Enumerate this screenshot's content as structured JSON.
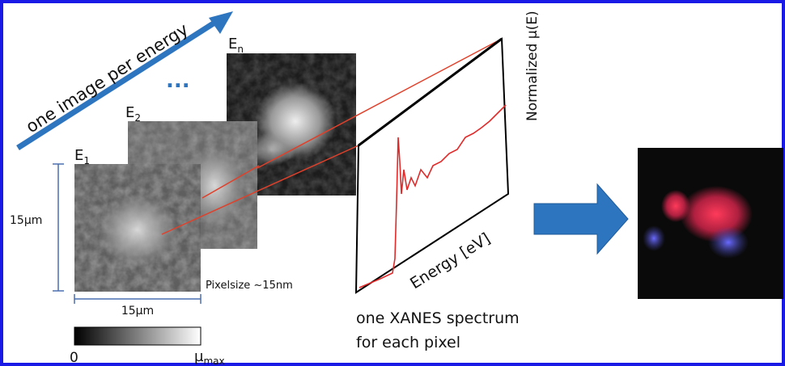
{
  "labels": {
    "arrow_text": "one image per energy",
    "ellipsis": "...",
    "e_n": {
      "base": "E",
      "sub": "n"
    },
    "e_2": {
      "base": "E",
      "sub": "2"
    },
    "e_1": {
      "base": "E",
      "sub": "1"
    },
    "scale_vertical": "15µm",
    "scale_horizontal": "15µm",
    "pixelsize": "Pixelsize ~15nm",
    "y_axis": "Normalized µ(E)",
    "x_axis": "Energy [eV]",
    "caption_line1": "one XANES spectrum",
    "caption_line2": "for each pixel",
    "colorbar_min": "0",
    "colorbar_max": {
      "base": "µ",
      "sub": "max"
    }
  }
}
